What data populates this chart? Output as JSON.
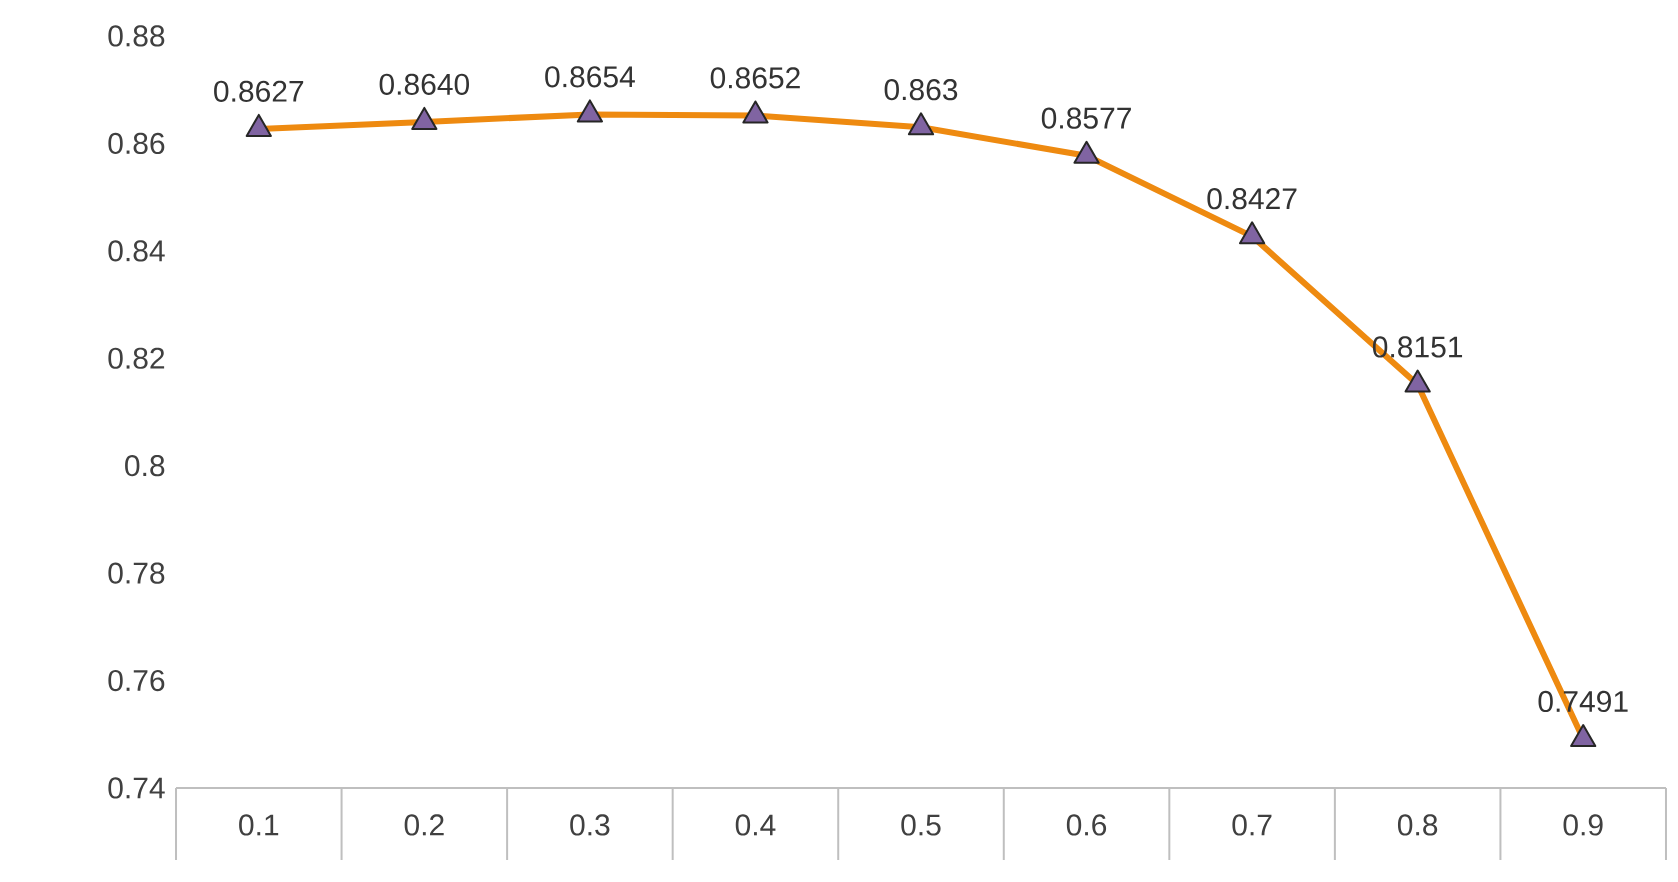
{
  "chart_data": {
    "type": "line",
    "categories": [
      "0.1",
      "0.2",
      "0.3",
      "0.4",
      "0.5",
      "0.6",
      "0.7",
      "0.8",
      "0.9"
    ],
    "series": [
      {
        "color": "#ee8a10",
        "values": [
          0.8627,
          0.864,
          0.8654,
          0.8652,
          0.863,
          0.8577,
          0.8427,
          0.8151,
          0.7491
        ],
        "value_labels": [
          "0.8627",
          "0.8640",
          "0.8654",
          "0.8652",
          "0.863",
          "0.8577",
          "0.8427",
          "0.8151",
          "0.7491"
        ]
      }
    ],
    "ylim": [
      0.74,
      0.88
    ],
    "yticks": [
      0.74,
      0.76,
      0.78,
      0.8,
      0.82,
      0.84,
      0.86,
      0.88
    ],
    "grid": false,
    "marker": "triangle",
    "line_style": "solid"
  }
}
